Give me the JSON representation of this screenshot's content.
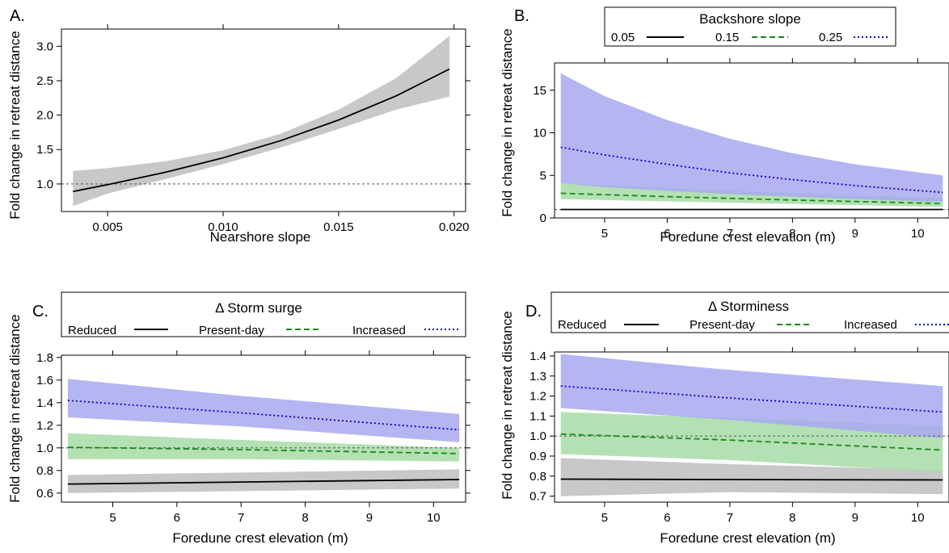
{
  "chart_data": [
    {
      "type": "line",
      "panel_label": "A.",
      "xlabel": "Nearshore slope",
      "ylabel": "Fold change in retreat distance",
      "xlim": [
        0.003,
        0.0205
      ],
      "ylim": [
        0.6,
        3.25
      ],
      "xticks": [
        0.005,
        0.01,
        0.015,
        0.02
      ],
      "xtick_labels": [
        "0.005",
        "0.010",
        "0.015",
        "0.020"
      ],
      "yticks": [
        1.0,
        1.5,
        2.0,
        2.5,
        3.0
      ],
      "ytick_labels": [
        "1.0",
        "1.5",
        "2.0",
        "2.5",
        "3.0"
      ],
      "reference_line": 1.0,
      "series": [
        {
          "color": "#000000",
          "dash": "solid",
          "band_color": "#bebebe",
          "x": [
            0.0035,
            0.005,
            0.0075,
            0.01,
            0.0125,
            0.015,
            0.0175,
            0.0198
          ],
          "y": [
            0.89,
            0.99,
            1.17,
            1.38,
            1.63,
            1.93,
            2.28,
            2.67
          ],
          "lower": [
            0.68,
            0.86,
            1.07,
            1.29,
            1.53,
            1.8,
            2.08,
            2.27
          ],
          "upper": [
            1.19,
            1.23,
            1.33,
            1.49,
            1.73,
            2.08,
            2.54,
            3.15
          ]
        }
      ]
    },
    {
      "type": "line",
      "panel_label": "B.",
      "legend_title": "Backshore slope",
      "legend_labels": [
        "0.05",
        "0.15",
        "0.25"
      ],
      "xlabel": "Foredune crest elevation (m)",
      "ylabel": "Fold change in retreat distance",
      "xlim": [
        4.2,
        10.5
      ],
      "ylim": [
        0,
        18.2
      ],
      "xticks": [
        5,
        6,
        7,
        8,
        9,
        10
      ],
      "xtick_labels": [
        "5",
        "6",
        "7",
        "8",
        "9",
        "10"
      ],
      "yticks": [
        0,
        5,
        10,
        15
      ],
      "ytick_labels": [
        "0",
        "5",
        "10",
        "15"
      ],
      "reference_line": 1.0,
      "series": [
        {
          "color": "#000000",
          "dash": "solid",
          "band_color": "#bebebe",
          "x": [
            4.3,
            6,
            8,
            10.4
          ],
          "y": [
            1.0,
            1.0,
            1.0,
            1.0
          ],
          "lower": [
            0.96,
            0.96,
            0.96,
            0.96
          ],
          "upper": [
            1.04,
            1.04,
            1.04,
            1.04
          ]
        },
        {
          "color": "#1a8a1a",
          "dash": "dashed",
          "band_color": "#a6dca6",
          "x": [
            4.3,
            6,
            8,
            10.4
          ],
          "y": [
            2.9,
            2.5,
            2.1,
            1.7
          ],
          "lower": [
            2.2,
            1.95,
            1.65,
            1.3
          ],
          "upper": [
            4.1,
            3.5,
            2.9,
            2.3
          ]
        },
        {
          "color": "#0000cc",
          "dash": "dotted",
          "band_color": "#a8a8f0",
          "x": [
            4.3,
            5,
            6,
            7,
            8,
            9,
            10.4
          ],
          "y": [
            8.3,
            7.4,
            6.3,
            5.3,
            4.5,
            3.8,
            3.0
          ],
          "lower": [
            4.1,
            3.6,
            3.2,
            2.8,
            2.5,
            2.2,
            1.9
          ],
          "upper": [
            17.0,
            14.3,
            11.5,
            9.3,
            7.6,
            6.3,
            5.0
          ]
        }
      ]
    },
    {
      "type": "line",
      "panel_label": "C.",
      "legend_title": "Δ Storm surge",
      "legend_labels": [
        "Reduced",
        "Present-day",
        "Increased"
      ],
      "xlabel": "Foredune crest elevation (m)",
      "ylabel": "Fold change in retreat distance",
      "xlim": [
        4.2,
        10.5
      ],
      "ylim": [
        0.52,
        1.82
      ],
      "xticks": [
        5,
        6,
        7,
        8,
        9,
        10
      ],
      "xtick_labels": [
        "5",
        "6",
        "7",
        "8",
        "9",
        "10"
      ],
      "yticks": [
        0.6,
        0.8,
        1.0,
        1.2,
        1.4,
        1.6,
        1.8
      ],
      "ytick_labels": [
        "0.6",
        "0.8",
        "1.0",
        "1.2",
        "1.4",
        "1.6",
        "1.8"
      ],
      "reference_line": 1.0,
      "series": [
        {
          "color": "#000000",
          "dash": "solid",
          "band_color": "#bebebe",
          "x": [
            4.3,
            10.4
          ],
          "y": [
            0.68,
            0.72
          ],
          "lower": [
            0.6,
            0.64
          ],
          "upper": [
            0.76,
            0.81
          ]
        },
        {
          "color": "#1a8a1a",
          "dash": "dashed",
          "band_color": "#a6dca6",
          "x": [
            4.3,
            7,
            10.4
          ],
          "y": [
            1.005,
            0.985,
            0.95
          ],
          "lower": [
            0.9,
            0.9,
            0.88
          ],
          "upper": [
            1.13,
            1.07,
            1.0
          ]
        },
        {
          "color": "#0000cc",
          "dash": "dotted",
          "band_color": "#a8a8f0",
          "x": [
            4.3,
            7,
            10.4
          ],
          "y": [
            1.42,
            1.31,
            1.16
          ],
          "lower": [
            1.27,
            1.19,
            1.05
          ],
          "upper": [
            1.61,
            1.46,
            1.3
          ]
        }
      ]
    },
    {
      "type": "line",
      "panel_label": "D.",
      "legend_title": "Δ Storminess",
      "legend_labels": [
        "Reduced",
        "Present-day",
        "Increased"
      ],
      "xlabel": "Foredune crest elevation (m)",
      "ylabel": "Fold change in retreat distance",
      "xlim": [
        4.2,
        10.5
      ],
      "ylim": [
        0.67,
        1.42
      ],
      "xticks": [
        5,
        6,
        7,
        8,
        9,
        10
      ],
      "xtick_labels": [
        "5",
        "6",
        "7",
        "8",
        "9",
        "10"
      ],
      "yticks": [
        0.7,
        0.8,
        0.9,
        1.0,
        1.1,
        1.2,
        1.3,
        1.4
      ],
      "ytick_labels": [
        "0.7",
        "0.8",
        "0.9",
        "1.0",
        "1.1",
        "1.2",
        "1.3",
        "1.4"
      ],
      "reference_line": 1.0,
      "series": [
        {
          "color": "#000000",
          "dash": "solid",
          "band_color": "#bebebe",
          "x": [
            4.3,
            7,
            10.4
          ],
          "y": [
            0.785,
            0.783,
            0.781
          ],
          "lower": [
            0.7,
            0.72,
            0.71
          ],
          "upper": [
            0.89,
            0.86,
            0.83
          ]
        },
        {
          "color": "#1a8a1a",
          "dash": "dashed",
          "band_color": "#a6dca6",
          "x": [
            4.3,
            7,
            10.4
          ],
          "y": [
            1.01,
            0.98,
            0.93
          ],
          "lower": [
            0.91,
            0.88,
            0.82
          ],
          "upper": [
            1.12,
            1.09,
            1.05
          ]
        },
        {
          "color": "#0000cc",
          "dash": "dotted",
          "band_color": "#a8a8f0",
          "x": [
            4.3,
            7,
            10.4
          ],
          "y": [
            1.25,
            1.19,
            1.12
          ],
          "lower": [
            1.14,
            1.08,
            0.99
          ],
          "upper": [
            1.41,
            1.33,
            1.25
          ]
        }
      ]
    }
  ]
}
